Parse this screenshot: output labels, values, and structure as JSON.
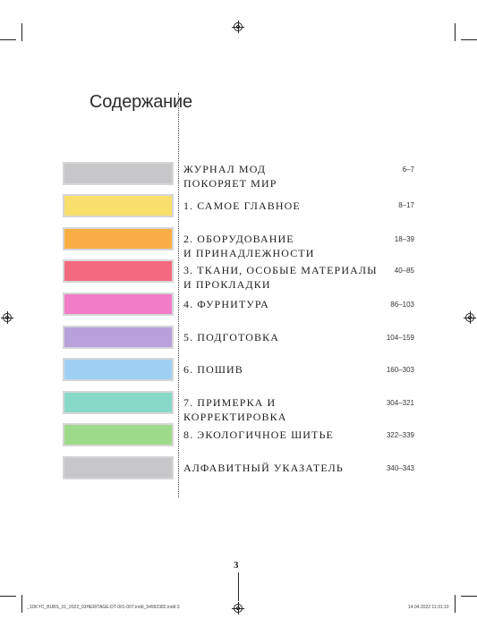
{
  "heading": "Содержание",
  "toc": [
    {
      "title": "ЖУРНАЛ МОД\nПОКОРЯЕТ МИР",
      "pages": "6–7",
      "color": "#c7c7c9"
    },
    {
      "title": "1. САМОЕ ГЛАВНОЕ",
      "pages": "8–17",
      "color": "#f9df6b"
    },
    {
      "title": "2. ОБОРУДОВАНИЕ\nИ ПРИНАДЛЕЖНОСТИ",
      "pages": "18–39",
      "color": "#f8ae45"
    },
    {
      "title": "3. ТКАНИ, ОСОБЫЕ МАТЕРИАЛЫ\nИ ПРОКЛАДКИ",
      "pages": "40–85",
      "color": "#f36a7f"
    },
    {
      "title": "4. ФУРНИТУРА",
      "pages": "86–103",
      "color": "#f07dc6"
    },
    {
      "title": "5. ПОДГОТОВКА",
      "pages": "104–159",
      "color": "#b9a1dc"
    },
    {
      "title": "6. ПОШИВ",
      "pages": "160–303",
      "color": "#9fd0f3"
    },
    {
      "title": "7. ПРИМЕРКА И КОРРЕКТИРОВКА",
      "pages": "304–321",
      "color": "#88d9c7"
    },
    {
      "title": "8. ЭКОЛОГИЧНОЕ ШИТЬЕ",
      "pages": "322–339",
      "color": "#9ddb8a"
    },
    {
      "title": "АЛФАВИТНЫЙ УКАЗАТЕЛЬ",
      "pages": "340–343",
      "color": "#c7c7c9"
    }
  ],
  "page_number": "3",
  "slug_left": "_1DKYC_BUBS_01_2022_03HERITAGE-DT-001-007.indd_54992382.indd 3",
  "slug_right": "14.04.2022 11:31:10"
}
